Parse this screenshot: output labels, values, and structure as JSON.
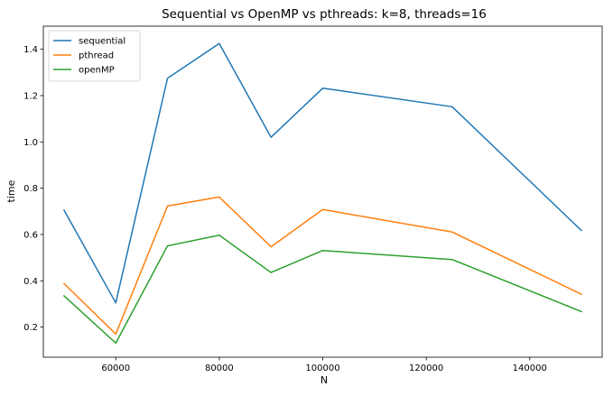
{
  "chart_data": {
    "type": "line",
    "title": "Sequential vs OpenMP vs pthreads: k=8, threads=16",
    "xlabel": "N",
    "ylabel": "time",
    "x": [
      50000,
      60000,
      70000,
      80000,
      90000,
      100000,
      125000,
      150000
    ],
    "xlim": [
      46000,
      154000
    ],
    "ylim": [
      0.07,
      1.5
    ],
    "xticks": [
      60000,
      80000,
      100000,
      120000,
      140000
    ],
    "xtick_labels": [
      "60000",
      "80000",
      "100000",
      "120000",
      "140000"
    ],
    "yticks": [
      0.2,
      0.4,
      0.6,
      0.8,
      1.0,
      1.2,
      1.4
    ],
    "ytick_labels": [
      "0.2",
      "0.4",
      "0.6",
      "0.8",
      "1.0",
      "1.2",
      "1.4"
    ],
    "grid": false,
    "legend_position": "upper-left",
    "series": [
      {
        "name": "sequential",
        "color": "#1f77b4",
        "values": [
          0.705,
          0.305,
          1.275,
          1.425,
          1.02,
          1.232,
          1.152,
          0.617
        ]
      },
      {
        "name": "pthread",
        "color": "#ff7f0e",
        "values": [
          0.388,
          0.17,
          0.723,
          0.762,
          0.547,
          0.708,
          0.611,
          0.342
        ]
      },
      {
        "name": "openMP",
        "color": "#2ca02c",
        "values": [
          0.335,
          0.131,
          0.551,
          0.597,
          0.436,
          0.531,
          0.492,
          0.267
        ]
      }
    ]
  }
}
